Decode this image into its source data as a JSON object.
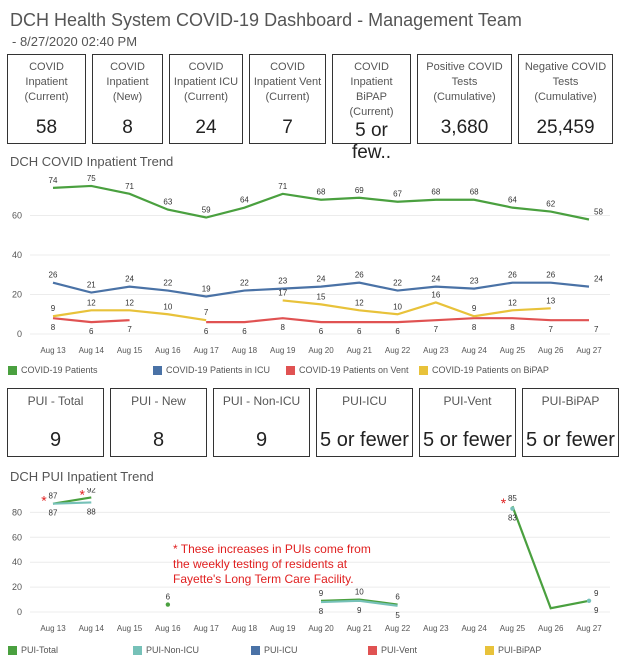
{
  "header": {
    "title": "DCH Health System COVID-19 Dashboard - Management Team",
    "subtitle": "- 8/27/2020 02:40 PM"
  },
  "kpis_top": [
    {
      "label": "COVID\nInpatient\n(Current)",
      "value": "58"
    },
    {
      "label": "COVID\nInpatient\n(New)",
      "value": "8"
    },
    {
      "label": "COVID\nInpatient ICU\n(Current)",
      "value": "24"
    },
    {
      "label": "COVID\nInpatient Vent\n(Current)",
      "value": "7"
    },
    {
      "label": "COVID\nInpatient BiPAP\n(Current)",
      "value": "5 or few.."
    },
    {
      "label": "Positive COVID\nTests\n(Cumulative)",
      "value": "3,680"
    },
    {
      "label": "Negative COVID\nTests\n(Cumulative)",
      "value": "25,459"
    }
  ],
  "kpis_pui": [
    {
      "label": "PUI - Total",
      "value": "9"
    },
    {
      "label": "PUI - New",
      "value": "8"
    },
    {
      "label": "PUI - Non-ICU",
      "value": "9"
    },
    {
      "label": "PUI-ICU",
      "value": "5 or fewer"
    },
    {
      "label": "PUI-Vent",
      "value": "5 or fewer"
    },
    {
      "label": "PUI-BiPAP",
      "value": "5 or fewer"
    }
  ],
  "annotation": "* These increases in PUIs come from\nthe weekly testing of residents at\nFayette's Long Term Care Facility.",
  "chart_data": [
    {
      "type": "line",
      "title": "DCH COVID Inpatient Trend",
      "categories": [
        "Aug 13",
        "Aug 14",
        "Aug 15",
        "Aug 16",
        "Aug 17",
        "Aug 18",
        "Aug 19",
        "Aug 20",
        "Aug 21",
        "Aug 22",
        "Aug 23",
        "Aug 24",
        "Aug 25",
        "Aug 26",
        "Aug 27"
      ],
      "ylim": [
        0,
        78
      ],
      "yticks": [
        0,
        20,
        40,
        60
      ],
      "series": [
        {
          "name": "COVID-19 Patients",
          "color": "#4aa03f",
          "values": [
            74,
            75,
            71,
            63,
            59,
            64,
            71,
            68,
            69,
            67,
            68,
            68,
            64,
            62,
            58
          ]
        },
        {
          "name": "COVID-19 Patients in ICU",
          "color": "#4a72a6",
          "values": [
            26,
            21,
            24,
            22,
            19,
            22,
            23,
            24,
            26,
            22,
            24,
            23,
            26,
            26,
            24
          ]
        },
        {
          "name": "COVID-19 Patients on Vent",
          "color": "#e05252",
          "values": [
            8,
            6,
            7,
            null,
            6,
            6,
            8,
            6,
            6,
            6,
            7,
            8,
            8,
            7,
            7
          ]
        },
        {
          "name": "COVID-19 Patients on BiPAP",
          "color": "#e8c23a",
          "values": [
            9,
            12,
            12,
            10,
            7,
            null,
            17,
            15,
            12,
            10,
            16,
            9,
            12,
            13,
            null
          ]
        }
      ],
      "labels": [
        {
          "series": 0,
          "i": 0,
          "text": "74"
        },
        {
          "series": 0,
          "i": 1,
          "text": "75"
        },
        {
          "series": 0,
          "i": 2,
          "text": "71"
        },
        {
          "series": 0,
          "i": 3,
          "text": "63"
        },
        {
          "series": 0,
          "i": 4,
          "text": "59"
        },
        {
          "series": 0,
          "i": 5,
          "text": "64"
        },
        {
          "series": 0,
          "i": 6,
          "text": "71"
        },
        {
          "series": 0,
          "i": 7,
          "text": "68"
        },
        {
          "series": 0,
          "i": 8,
          "text": "69"
        },
        {
          "series": 0,
          "i": 9,
          "text": "67"
        },
        {
          "series": 0,
          "i": 10,
          "text": "68"
        },
        {
          "series": 0,
          "i": 11,
          "text": "68"
        },
        {
          "series": 0,
          "i": 12,
          "text": "64"
        },
        {
          "series": 0,
          "i": 13,
          "text": "62"
        },
        {
          "series": 0,
          "i": 14,
          "text": "58"
        },
        {
          "series": 1,
          "i": 0,
          "text": "26"
        },
        {
          "series": 1,
          "i": 1,
          "text": "21"
        },
        {
          "series": 1,
          "i": 2,
          "text": "24"
        },
        {
          "series": 1,
          "i": 3,
          "text": "22"
        },
        {
          "series": 1,
          "i": 4,
          "text": "19"
        },
        {
          "series": 1,
          "i": 5,
          "text": "22"
        },
        {
          "series": 1,
          "i": 6,
          "text": "23"
        },
        {
          "series": 1,
          "i": 7,
          "text": "24"
        },
        {
          "series": 1,
          "i": 8,
          "text": "26"
        },
        {
          "series": 1,
          "i": 9,
          "text": "22"
        },
        {
          "series": 1,
          "i": 10,
          "text": "24"
        },
        {
          "series": 1,
          "i": 11,
          "text": "23"
        },
        {
          "series": 1,
          "i": 12,
          "text": "26"
        },
        {
          "series": 1,
          "i": 13,
          "text": "26"
        },
        {
          "series": 1,
          "i": 14,
          "text": "24"
        },
        {
          "series": 2,
          "i": 0,
          "text": "8"
        },
        {
          "series": 2,
          "i": 1,
          "text": "6"
        },
        {
          "series": 2,
          "i": 2,
          "text": "7"
        },
        {
          "series": 2,
          "i": 4,
          "text": "6"
        },
        {
          "series": 2,
          "i": 5,
          "text": "6"
        },
        {
          "series": 2,
          "i": 6,
          "text": "8"
        },
        {
          "series": 2,
          "i": 7,
          "text": "6"
        },
        {
          "series": 2,
          "i": 8,
          "text": "6"
        },
        {
          "series": 2,
          "i": 9,
          "text": "6"
        },
        {
          "series": 2,
          "i": 10,
          "text": "7"
        },
        {
          "series": 2,
          "i": 11,
          "text": "8"
        },
        {
          "series": 2,
          "i": 12,
          "text": "8"
        },
        {
          "series": 2,
          "i": 13,
          "text": "7"
        },
        {
          "series": 2,
          "i": 14,
          "text": "7"
        },
        {
          "series": 3,
          "i": 0,
          "text": "9"
        },
        {
          "series": 3,
          "i": 1,
          "text": "12"
        },
        {
          "series": 3,
          "i": 2,
          "text": "12"
        },
        {
          "series": 3,
          "i": 3,
          "text": "10"
        },
        {
          "series": 3,
          "i": 4,
          "text": "7"
        },
        {
          "series": 3,
          "i": 6,
          "text": "17"
        },
        {
          "series": 3,
          "i": 7,
          "text": "15"
        },
        {
          "series": 3,
          "i": 8,
          "text": "12"
        },
        {
          "series": 3,
          "i": 9,
          "text": "10"
        },
        {
          "series": 3,
          "i": 10,
          "text": "16"
        },
        {
          "series": 3,
          "i": 11,
          "text": "9"
        },
        {
          "series": 3,
          "i": 12,
          "text": "12"
        },
        {
          "series": 3,
          "i": 13,
          "text": "13"
        }
      ]
    },
    {
      "type": "line",
      "title": "DCH PUI Inpatient Trend",
      "categories": [
        "Aug 13",
        "Aug 14",
        "Aug 15",
        "Aug 16",
        "Aug 17",
        "Aug 18",
        "Aug 19",
        "Aug 20",
        "Aug 21",
        "Aug 22",
        "Aug 23",
        "Aug 24",
        "Aug 25",
        "Aug 26",
        "Aug 27"
      ],
      "ylim": [
        0,
        98
      ],
      "yticks": [
        0,
        20,
        40,
        60,
        80
      ],
      "series": [
        {
          "name": "PUI-Total",
          "color": "#4aa03f",
          "values": [
            87,
            92,
            null,
            6,
            null,
            null,
            null,
            9,
            10,
            6,
            null,
            null,
            85,
            3,
            9
          ]
        },
        {
          "name": "PUI-Non-ICU",
          "color": "#76c1b8",
          "values": [
            87,
            88,
            null,
            null,
            null,
            null,
            null,
            8,
            9,
            5,
            null,
            null,
            83,
            null,
            9
          ]
        },
        {
          "name": "PUI-ICU",
          "color": "#4a72a6",
          "values": [
            null,
            null,
            null,
            null,
            null,
            null,
            null,
            null,
            null,
            null,
            null,
            null,
            null,
            null,
            null
          ]
        },
        {
          "name": "PUI-Vent",
          "color": "#e05252",
          "values": [
            null,
            null,
            null,
            null,
            null,
            null,
            null,
            null,
            null,
            null,
            null,
            null,
            null,
            null,
            null
          ]
        },
        {
          "name": "PUI-BiPAP",
          "color": "#e8c23a",
          "values": [
            null,
            null,
            null,
            null,
            null,
            null,
            null,
            null,
            null,
            null,
            null,
            null,
            null,
            null,
            null
          ]
        }
      ],
      "labels": [
        {
          "series": 0,
          "i": 0,
          "text": "87"
        },
        {
          "series": 0,
          "i": 1,
          "text": "92"
        },
        {
          "series": 0,
          "i": 3,
          "text": "6"
        },
        {
          "series": 0,
          "i": 7,
          "text": "9"
        },
        {
          "series": 0,
          "i": 8,
          "text": "10"
        },
        {
          "series": 0,
          "i": 9,
          "text": "6"
        },
        {
          "series": 0,
          "i": 12,
          "text": "85"
        },
        {
          "series": 0,
          "i": 14,
          "text": "9"
        },
        {
          "series": 1,
          "i": 0,
          "text": "87"
        },
        {
          "series": 1,
          "i": 1,
          "text": "88"
        },
        {
          "series": 1,
          "i": 7,
          "text": "8"
        },
        {
          "series": 1,
          "i": 8,
          "text": "9"
        },
        {
          "series": 1,
          "i": 9,
          "text": "5"
        },
        {
          "series": 1,
          "i": 12,
          "text": "83"
        },
        {
          "series": 1,
          "i": 14,
          "text": "9"
        }
      ],
      "markers": [
        {
          "i": 0,
          "text": "*"
        },
        {
          "i": 1,
          "text": "*"
        },
        {
          "i": 12,
          "text": "*"
        }
      ]
    }
  ]
}
